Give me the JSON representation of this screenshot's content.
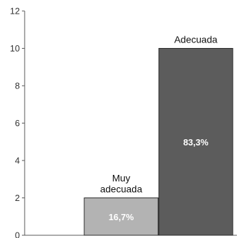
{
  "chart_data": {
    "type": "bar",
    "categories": [
      "Muy adecuada",
      "Adecuada"
    ],
    "category_label_lines": [
      [
        "Muy",
        "adecuada"
      ],
      [
        "Adecuada"
      ]
    ],
    "values": [
      2,
      10
    ],
    "data_labels": [
      "16,7%",
      "83,3%"
    ],
    "colors": [
      "#b3b3b3",
      "#5c5c5c"
    ],
    "ylim": [
      0,
      12
    ],
    "yticks": [
      0,
      2,
      4,
      6,
      8,
      10,
      12
    ],
    "grid": false,
    "legend": "none",
    "title": "",
    "xlabel": "",
    "ylabel": ""
  }
}
